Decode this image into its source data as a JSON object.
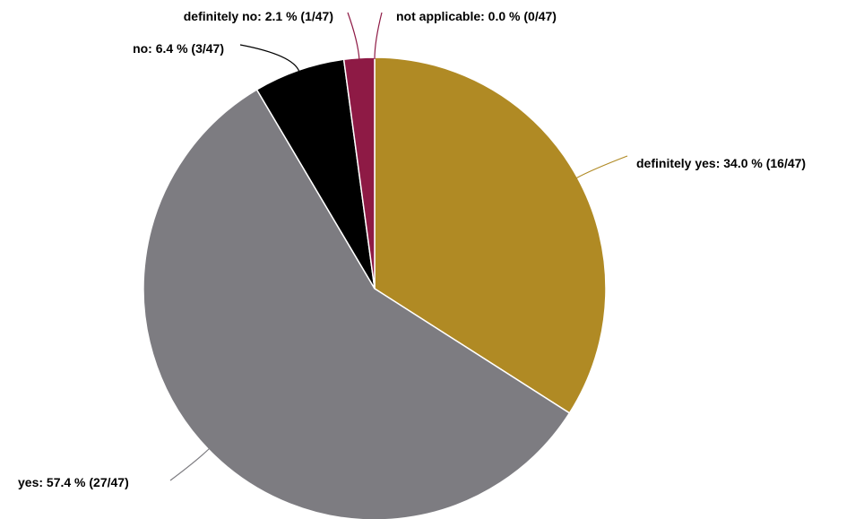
{
  "chart_data": {
    "type": "pie",
    "title": "",
    "start": "12 o'clock",
    "direction": "clockwise",
    "slices": [
      {
        "name": "definitely yes",
        "percent": 34.0,
        "count": 16,
        "total": 47,
        "label": "definitely yes: 34.0 % (16/47)",
        "color": "#B08A24"
      },
      {
        "name": "yes",
        "percent": 57.4,
        "count": 27,
        "total": 47,
        "label": "yes: 57.4 % (27/47)",
        "color": "#7D7C81"
      },
      {
        "name": "no",
        "percent": 6.4,
        "count": 3,
        "total": 47,
        "label": "no: 6.4 % (3/47)",
        "color": "#000000"
      },
      {
        "name": "definitely no",
        "percent": 2.1,
        "count": 1,
        "total": 47,
        "label": "definitely no: 2.1 % (1/47)",
        "color": "#8E1A45"
      },
      {
        "name": "not applicable",
        "percent": 0.0,
        "count": 0,
        "total": 47,
        "label": "not applicable: 0.0 % (0/47)",
        "color": "#8E1A45"
      }
    ]
  }
}
